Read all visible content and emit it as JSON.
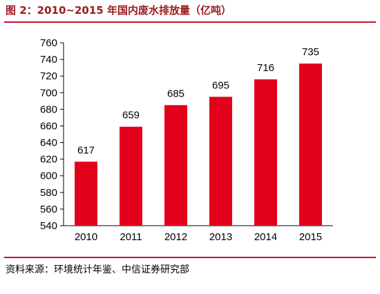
{
  "title": "图 2：2010~2015 年国内废水排放量（亿吨）",
  "source": "资料来源：环境统计年鉴、中信证券研究部",
  "colors": {
    "bar": "#e3001b",
    "rule": "#c8102e",
    "title": "#9b1b1f"
  },
  "chart_data": {
    "type": "bar",
    "categories": [
      "2010",
      "2011",
      "2012",
      "2013",
      "2014",
      "2015"
    ],
    "values": [
      617,
      659,
      685,
      695,
      716,
      735
    ],
    "data_labels": [
      "617",
      "659",
      "685",
      "695",
      "716",
      "735"
    ],
    "y_ticks": [
      "540",
      "560",
      "580",
      "600",
      "620",
      "640",
      "660",
      "680",
      "700",
      "720",
      "740",
      "760"
    ],
    "ylim": [
      540,
      760
    ],
    "grid": false,
    "legend": "none"
  }
}
